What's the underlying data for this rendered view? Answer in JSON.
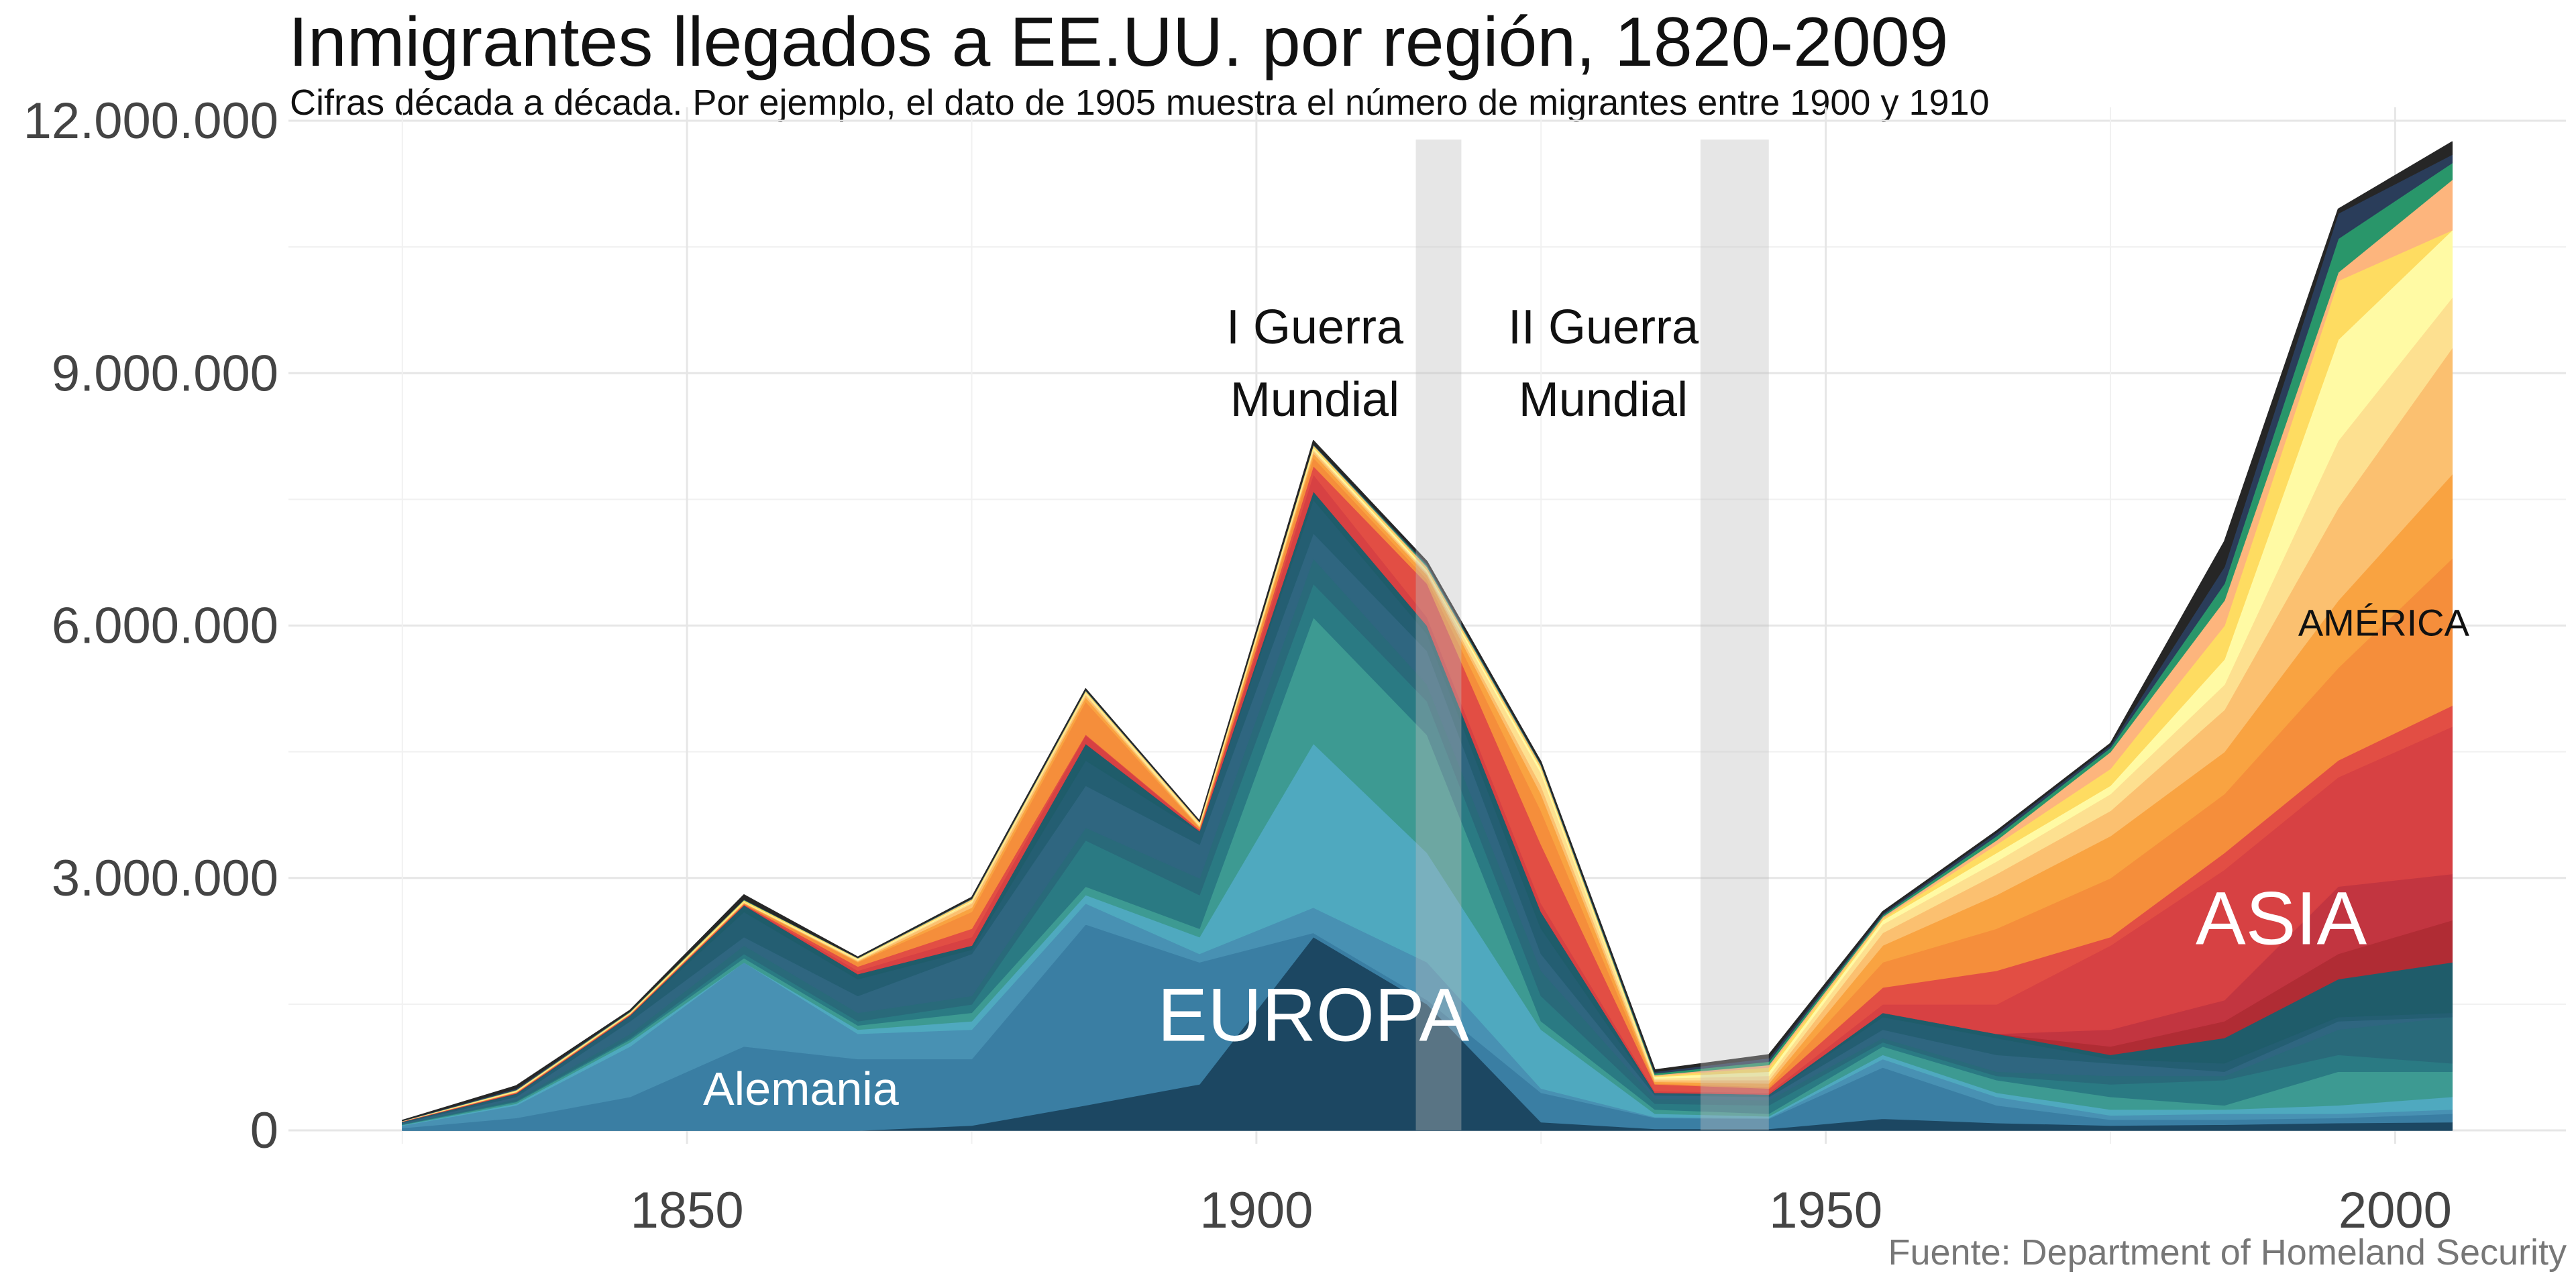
{
  "chart_data": {
    "type": "area",
    "title": "Inmigrantes llegados a EE.UU. por región, 1820-2009",
    "subtitle": "Cifras década a década. Por ejemplo, el dato de 1905 muestra el número de migrantes entre 1900 y 1910",
    "source": "Fuente: Department of Homeland Security",
    "xlabel": "",
    "ylabel": "",
    "xlim": [
      1815,
      2015
    ],
    "ylim": [
      0,
      12000000
    ],
    "x_ticks": [
      {
        "value": 1850,
        "label": "1850"
      },
      {
        "value": 1900,
        "label": "1900"
      },
      {
        "value": 1950,
        "label": "1950"
      },
      {
        "value": 2000,
        "label": "2000"
      }
    ],
    "y_ticks": [
      {
        "value": 0,
        "label": "0"
      },
      {
        "value": 3000000,
        "label": "3.000.000"
      },
      {
        "value": 6000000,
        "label": "6.000.000"
      },
      {
        "value": 9000000,
        "label": "9.000.000"
      },
      {
        "value": 12000000,
        "label": "12.000.000"
      }
    ],
    "grid": true,
    "x": [
      1825,
      1835,
      1845,
      1855,
      1865,
      1875,
      1885,
      1895,
      1905,
      1915,
      1925,
      1935,
      1945,
      1955,
      1965,
      1975,
      1985,
      1995,
      2005
    ],
    "cumulative": [
      [
        0,
        0,
        0,
        0,
        0,
        60000,
        300000,
        550000,
        2300000,
        1500000,
        100000,
        20000,
        20000,
        140000,
        90000,
        60000,
        70000,
        90000,
        100000
      ],
      [
        30000,
        150000,
        400000,
        1000000,
        850000,
        850000,
        2450000,
        2000000,
        2350000,
        1550000,
        450000,
        150000,
        140000,
        750000,
        300000,
        130000,
        130000,
        150000,
        200000
      ],
      [
        60000,
        300000,
        1000000,
        2000000,
        1150000,
        1200000,
        2700000,
        2100000,
        2650000,
        2000000,
        500000,
        160000,
        150000,
        850000,
        400000,
        180000,
        200000,
        200000,
        250000
      ],
      [
        65000,
        320000,
        1050000,
        2000000,
        1200000,
        1300000,
        2800000,
        2300000,
        4600000,
        3300000,
        1200000,
        200000,
        170000,
        900000,
        450000,
        250000,
        250000,
        300000,
        400000
      ],
      [
        70000,
        340000,
        1080000,
        2050000,
        1250000,
        1400000,
        2900000,
        2400000,
        6100000,
        4700000,
        1300000,
        250000,
        200000,
        1000000,
        600000,
        400000,
        300000,
        700000,
        700000
      ],
      [
        75000,
        350000,
        1100000,
        2100000,
        1300000,
        1500000,
        3450000,
        2800000,
        6500000,
        5100000,
        1600000,
        320000,
        300000,
        1050000,
        650000,
        550000,
        600000,
        900000,
        800000
      ],
      [
        80000,
        370000,
        1150000,
        2200000,
        1400000,
        1600000,
        3600000,
        3000000,
        6800000,
        5300000,
        1900000,
        380000,
        360000,
        1100000,
        700000,
        650000,
        650000,
        1200000,
        1350000
      ],
      [
        90000,
        400000,
        1300000,
        2300000,
        1600000,
        2100000,
        4100000,
        3400000,
        7100000,
        5700000,
        2100000,
        420000,
        400000,
        1200000,
        900000,
        800000,
        700000,
        1300000,
        1350000
      ],
      [
        100000,
        430000,
        1360000,
        2600000,
        1800000,
        2150000,
        4400000,
        3550000,
        7500000,
        5900000,
        2400000,
        440000,
        420000,
        1350000,
        1100000,
        850000,
        800000,
        1350000,
        1400000
      ],
      [
        105000,
        440000,
        1370000,
        2680000,
        1860000,
        2200000,
        4600000,
        3560000,
        7600000,
        6000000,
        2600000,
        450000,
        430000,
        1400000,
        1150000,
        900000,
        1100000,
        1800000,
        2000000
      ],
      [
        105000,
        440000,
        1370000,
        2680000,
        1860000,
        2200000,
        4600000,
        3560000,
        7600000,
        6000000,
        2600000,
        450000,
        430000,
        1400000,
        1150000,
        1000000,
        1300000,
        2100000,
        2500000
      ],
      [
        105000,
        440000,
        1370000,
        2680000,
        1860000,
        2200000,
        4600000,
        3560000,
        7600000,
        6000000,
        2600000,
        450000,
        430000,
        1400000,
        1150000,
        1200000,
        1550000,
        2900000,
        3050000
      ],
      [
        105000,
        445000,
        1375000,
        2685000,
        1900000,
        2300000,
        4700000,
        3570000,
        7800000,
        6100000,
        2700000,
        470000,
        450000,
        1500000,
        1500000,
        2200000,
        3100000,
        4200000,
        4800000
      ],
      [
        110000,
        450000,
        1380000,
        2690000,
        1950000,
        2400000,
        4710000,
        3580000,
        7900000,
        6500000,
        3400000,
        550000,
        500000,
        1700000,
        1900000,
        2300000,
        3300000,
        4400000,
        5050000
      ],
      [
        110000,
        455000,
        1385000,
        2700000,
        2000000,
        2600000,
        5100000,
        3600000,
        8000000,
        6550000,
        3800000,
        560000,
        520000,
        2000000,
        2400000,
        3000000,
        4000000,
        5500000,
        6800000
      ],
      [
        110000,
        458000,
        1388000,
        2705000,
        2010000,
        2650000,
        5150000,
        3610000,
        8050000,
        6600000,
        4000000,
        580000,
        560000,
        2200000,
        2800000,
        3500000,
        4500000,
        6300000,
        7800000
      ],
      [
        110000,
        460000,
        1390000,
        2710000,
        2020000,
        2700000,
        5180000,
        3620000,
        8080000,
        6620000,
        4100000,
        600000,
        600000,
        2350000,
        3050000,
        3800000,
        5000000,
        7400000,
        9300000
      ],
      [
        112000,
        465000,
        1395000,
        2715000,
        2030000,
        2720000,
        5200000,
        3640000,
        8100000,
        6640000,
        4250000,
        620000,
        650000,
        2450000,
        3200000,
        4000000,
        5300000,
        8200000,
        9900000
      ],
      [
        113000,
        470000,
        1400000,
        2720000,
        2040000,
        2730000,
        5210000,
        3650000,
        8120000,
        6660000,
        4300000,
        640000,
        700000,
        2500000,
        3300000,
        4100000,
        5600000,
        9400000,
        10700000
      ],
      [
        114000,
        475000,
        1405000,
        2740000,
        2045000,
        2740000,
        5220000,
        3660000,
        8140000,
        6680000,
        4320000,
        650000,
        750000,
        2520000,
        3400000,
        4300000,
        6000000,
        10100000,
        10700000
      ],
      [
        115000,
        480000,
        1410000,
        2740000,
        2050000,
        2750000,
        5230000,
        3670000,
        8150000,
        6700000,
        4340000,
        660000,
        780000,
        2540000,
        3450000,
        4500000,
        6300000,
        10200000,
        11300000
      ],
      [
        116000,
        485000,
        1415000,
        2745000,
        2052000,
        2755000,
        5235000,
        3672000,
        8155000,
        6720000,
        4350000,
        680000,
        820000,
        2560000,
        3500000,
        4550000,
        6500000,
        10600000,
        11500000
      ],
      [
        118000,
        500000,
        1420000,
        2750000,
        2055000,
        2760000,
        5240000,
        3675000,
        8160000,
        6740000,
        4360000,
        700000,
        860000,
        2580000,
        3540000,
        4580000,
        6700000,
        10900000,
        11600000
      ],
      [
        120000,
        530000,
        1430000,
        2800000,
        2060000,
        2770000,
        5250000,
        3680000,
        8200000,
        6760000,
        4380000,
        720000,
        900000,
        2600000,
        3560000,
        4600000,
        7000000,
        10950000,
        11750000
      ]
    ],
    "colors": [
      "#1c4762",
      "#3a7ea3",
      "#4891b3",
      "#4fa9bf",
      "#3d9a92",
      "#2a7a83",
      "#296a7a",
      "#2f6680",
      "#245e72",
      "#1f5c6a",
      "#b02c34",
      "#c23540",
      "#d74143",
      "#e24e44",
      "#f58e3b",
      "#f9a341",
      "#fbc070",
      "#fde090",
      "#fffaa4",
      "#fedc61",
      "#fdb57d",
      "#29966a",
      "#2a3d5a",
      "#262626"
    ],
    "periods": [
      {
        "start": 1914,
        "end": 1918,
        "label_lines": [
          "I Guerra",
          "Mundial"
        ]
      },
      {
        "start": 1939,
        "end": 1945,
        "label_lines": [
          "II Guerra",
          "Mundial"
        ]
      }
    ],
    "annotations": [
      {
        "text": "EUROPA",
        "x": 1905,
        "y": 1300000,
        "size": 112,
        "color": "#ffffff"
      },
      {
        "text": "Alemania",
        "x": 1860,
        "y": 450000,
        "size": 70,
        "color": "#ffffff"
      },
      {
        "text": "ASIA",
        "x": 1990,
        "y": 2450000,
        "size": 112,
        "color": "#ffffff"
      },
      {
        "text": "AMÉRICA",
        "x": 1999,
        "y": 6000000,
        "size": 56,
        "color": "#111111"
      }
    ]
  }
}
